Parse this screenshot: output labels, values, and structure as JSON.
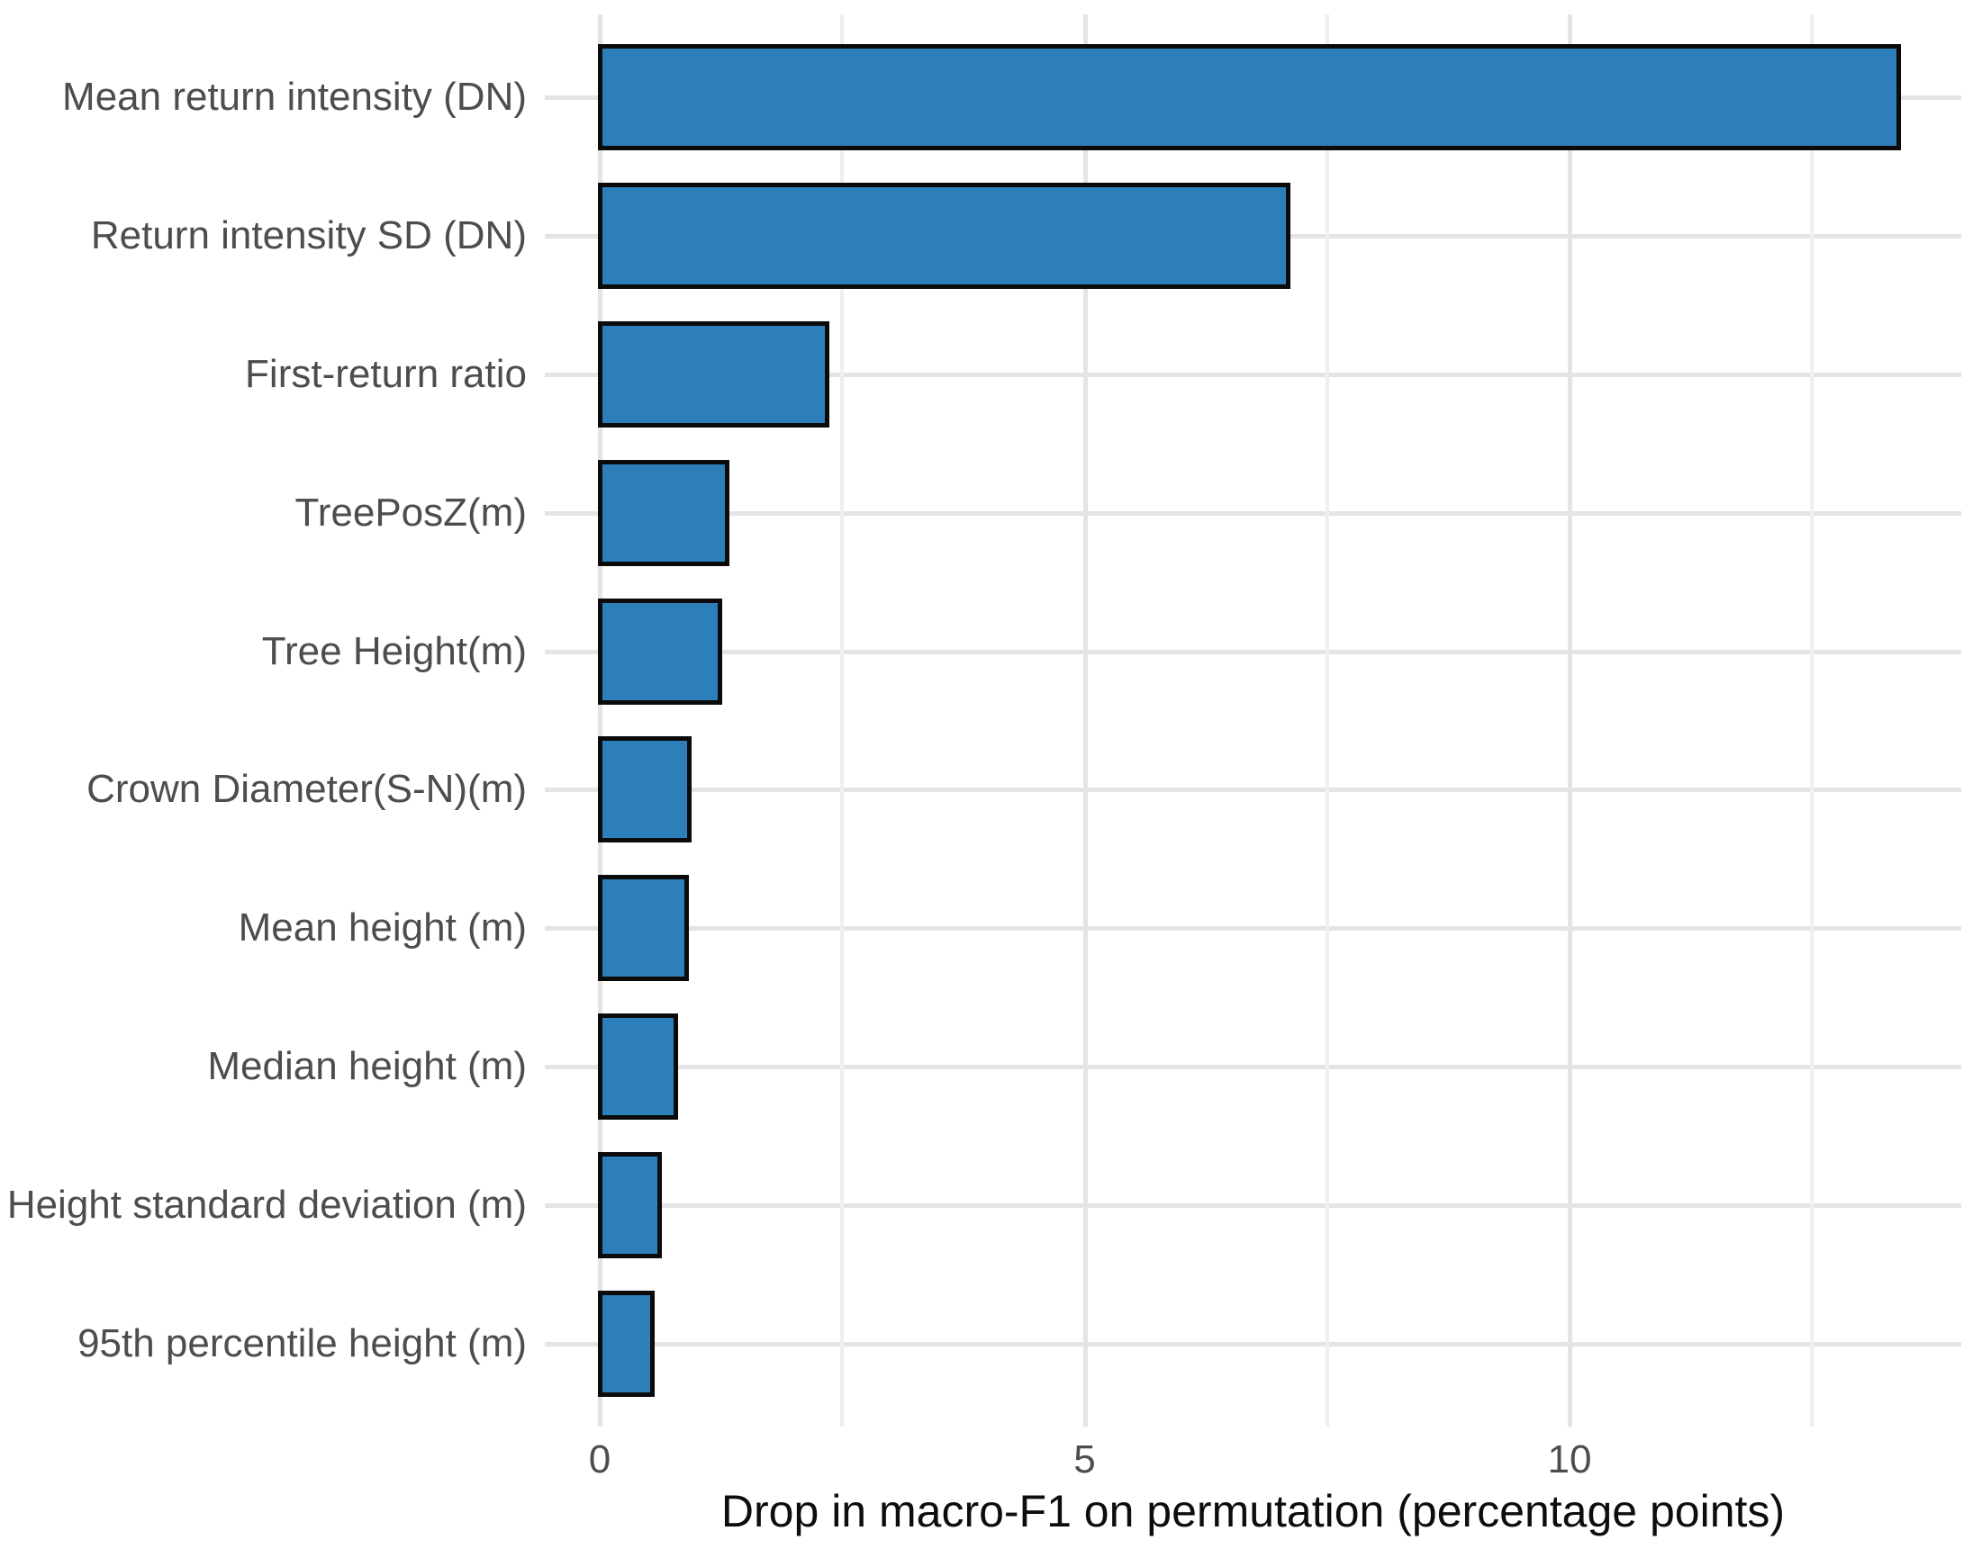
{
  "figure": {
    "background_color": "#ffffff",
    "panel_background": "#ffffff",
    "gridline_color_major": "#e4e4e4",
    "gridline_color_minor": "#efefef",
    "axis_text_color": "#4d4d4d",
    "axis_title_color": "#0d0d0d"
  },
  "chart_data": {
    "type": "bar",
    "orientation": "horizontal",
    "title": "",
    "xlabel": "Drop in macro-F1 on permutation (percentage points)",
    "ylabel": "",
    "categories": [
      "Mean return intensity (DN)",
      "Return intensity SD (DN)",
      "First-return ratio",
      "TreePosZ(m)",
      "Tree Height(m)",
      "Crown Diameter(S-N)(m)",
      "Mean height (m)",
      "Median height (m)",
      "Height standard deviation (m)",
      "95th percentile height (m)"
    ],
    "values": [
      13.4,
      7.1,
      2.35,
      1.32,
      1.24,
      0.93,
      0.9,
      0.79,
      0.62,
      0.55
    ],
    "x_major_ticks": [
      0,
      5,
      10
    ],
    "x_major_tick_labels": [
      "0",
      "5",
      "10"
    ],
    "x_minor_ticks": [
      2.5,
      7.5,
      12.5
    ],
    "xlim": [
      -0.6,
      14.05
    ],
    "grid": "major and minor vertical gridlines; one horizontal gridline per category; no axis lines; no tick marks",
    "legend_position": "none",
    "bar_fill": "#2C7FB8",
    "bar_stroke": "#0b0b0b"
  }
}
